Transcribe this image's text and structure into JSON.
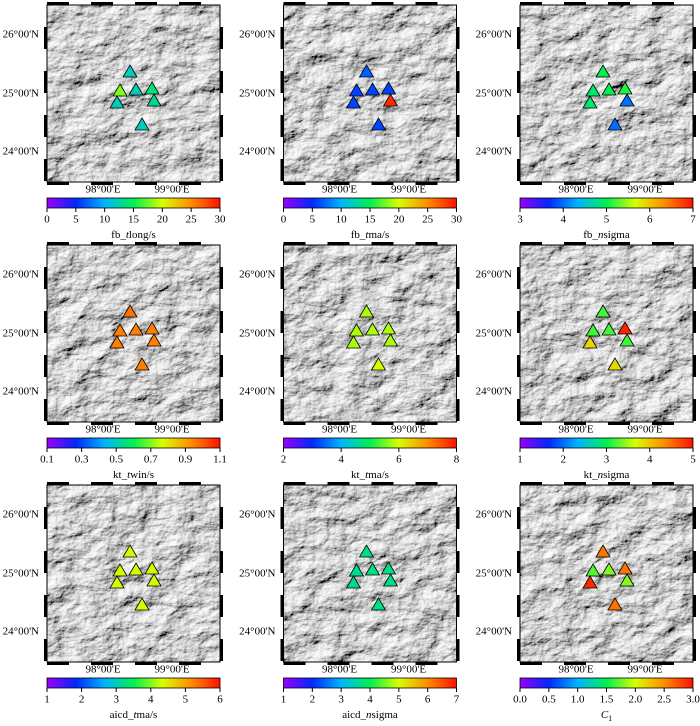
{
  "map": {
    "lat_labels": [
      "26°00'N",
      "25°00'N",
      "24°00'N"
    ],
    "lon_labels": [
      "98°00'E",
      "99°00'E"
    ]
  },
  "panels": [
    {
      "label": [
        {
          "text": "fb_"
        },
        {
          "text": "t",
          "italic": true
        },
        {
          "text": "long/s"
        }
      ],
      "range": [
        0,
        30
      ],
      "ticks": [
        0,
        5,
        10,
        15,
        20,
        25,
        30
      ],
      "values": [
        12,
        18,
        12,
        14,
        12,
        13,
        12
      ]
    },
    {
      "label": [
        {
          "text": "fb_"
        },
        {
          "text": "t",
          "italic": true
        },
        {
          "text": "ma/s"
        }
      ],
      "range": [
        0,
        30
      ],
      "ticks": [
        0,
        5,
        10,
        15,
        20,
        25,
        30
      ],
      "values": [
        7,
        6,
        6,
        6,
        6,
        29,
        6
      ]
    },
    {
      "label": [
        {
          "text": "fb_"
        },
        {
          "text": "n",
          "italic": true
        },
        {
          "text": "sigma"
        }
      ],
      "range": [
        3,
        7
      ],
      "ticks": [
        3,
        4,
        5,
        6,
        7
      ],
      "values": [
        5,
        4.9,
        5,
        5.1,
        4.9,
        4,
        4
      ]
    },
    {
      "label": [
        {
          "text": "kt_"
        },
        {
          "text": "t",
          "italic": true
        },
        {
          "text": "win/s"
        }
      ],
      "range": [
        0.1,
        1.1
      ],
      "ticks": [
        0.1,
        0.3,
        0.5,
        0.7,
        0.9,
        1.1
      ],
      "values": [
        0.97,
        0.95,
        0.95,
        0.95,
        0.95,
        0.95,
        0.95
      ]
    },
    {
      "label": [
        {
          "text": "kt_"
        },
        {
          "text": "t",
          "italic": true
        },
        {
          "text": "ma/s"
        }
      ],
      "range": [
        2,
        8
      ],
      "ticks": [
        2,
        4,
        6,
        8
      ],
      "values": [
        5.8,
        5.8,
        5.8,
        5.8,
        5.8,
        5.8,
        6
      ]
    },
    {
      "label": [
        {
          "text": "kt_"
        },
        {
          "text": "n",
          "italic": true
        },
        {
          "text": "sigma"
        }
      ],
      "range": [
        1,
        5
      ],
      "ticks": [
        1,
        2,
        3,
        4,
        5
      ],
      "values": [
        3.2,
        3.2,
        3.2,
        4.9,
        3.9,
        3.2,
        3.9
      ]
    },
    {
      "label": [
        {
          "text": "aicd_"
        },
        {
          "text": "t",
          "italic": true
        },
        {
          "text": "ma/s"
        }
      ],
      "range": [
        1,
        6
      ],
      "ticks": [
        1,
        2,
        3,
        4,
        5,
        6
      ],
      "values": [
        4.3,
        4.3,
        4.3,
        4.3,
        4.3,
        4.3,
        4.3
      ]
    },
    {
      "label": [
        {
          "text": "aicd_"
        },
        {
          "text": "n",
          "italic": true
        },
        {
          "text": "sigma"
        }
      ],
      "range": [
        1,
        7
      ],
      "ticks": [
        1,
        2,
        3,
        4,
        5,
        6,
        7
      ],
      "values": [
        3.7,
        3.6,
        3.7,
        3.7,
        3.6,
        3.7,
        3.7
      ]
    },
    {
      "label": [
        {
          "text": "C",
          "italic": true
        },
        {
          "text": "1",
          "sub": true
        }
      ],
      "range": [
        0,
        3
      ],
      "ticks": [
        {
          "value": 0,
          "label": "0.0"
        },
        0.5,
        {
          "value": 1,
          "label": "1.0"
        },
        1.5,
        {
          "value": 2,
          "label": "2.0"
        },
        2.5,
        {
          "value": 3,
          "label": "3.0"
        }
      ],
      "values": [
        2.6,
        1.7,
        1.8,
        2.6,
        2.9,
        1.8,
        2.6
      ]
    }
  ]
}
